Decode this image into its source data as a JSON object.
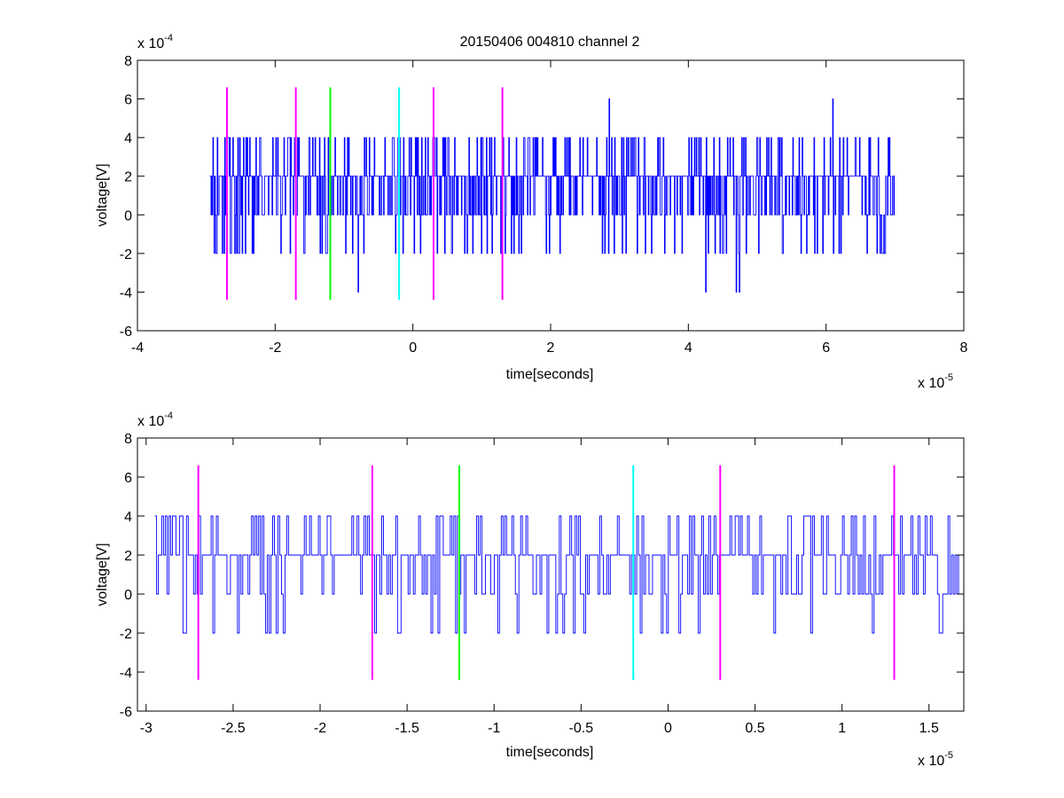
{
  "figure": {
    "title": "20150406 004810 channel 2",
    "background": "#ffffff"
  },
  "colors": {
    "signal": "#0000ff",
    "magenta": "#ff00ff",
    "green": "#00ff00",
    "cyan": "#00ffff",
    "axes": "#000000"
  },
  "chart_data": [
    {
      "type": "line",
      "title": "20150406 004810 channel 2",
      "xlabel": "time[seconds]",
      "ylabel": "voltage[V]",
      "x_multiplier": "x 10",
      "x_exponent": "-5",
      "y_multiplier": "x 10",
      "y_exponent": "-4",
      "xlim": [
        -4,
        8
      ],
      "ylim": [
        -6,
        8
      ],
      "xticks": [
        -4,
        -2,
        0,
        2,
        4,
        6,
        8
      ],
      "xtick_labels": [
        "-4",
        "-2",
        "0",
        "2",
        "4",
        "6",
        "8"
      ],
      "yticks": [
        -6,
        -4,
        -2,
        0,
        2,
        4,
        6,
        8
      ],
      "ytick_labels": [
        "-6",
        "-4",
        "-2",
        "0",
        "2",
        "4",
        "6",
        "8"
      ],
      "grid": false,
      "series": [
        {
          "color": "#0000ff",
          "x_range": [
            -2.95,
            7.0
          ],
          "levels": [
            -4,
            -2,
            0,
            2,
            4,
            6
          ],
          "baseline": 2,
          "peaks": [
            {
              "x": 2.85,
              "y": 6
            },
            {
              "x": 6.1,
              "y": 6
            },
            {
              "x": 4.7,
              "y": -4
            }
          ]
        }
      ],
      "vlines": [
        {
          "x": -2.7,
          "y": [
            -4.4,
            6.6
          ],
          "color": "#ff00ff"
        },
        {
          "x": -1.7,
          "y": [
            -4.4,
            6.6
          ],
          "color": "#ff00ff"
        },
        {
          "x": -1.2,
          "y": [
            -4.4,
            6.6
          ],
          "color": "#00ff00"
        },
        {
          "x": -0.2,
          "y": [
            -4.4,
            6.6
          ],
          "color": "#00ffff"
        },
        {
          "x": 0.3,
          "y": [
            -4.4,
            6.6
          ],
          "color": "#ff00ff"
        },
        {
          "x": 1.3,
          "y": [
            -4.4,
            6.6
          ],
          "color": "#ff00ff"
        }
      ]
    },
    {
      "type": "line",
      "title": "",
      "xlabel": "time[seconds]",
      "ylabel": "voltage[V]",
      "x_multiplier": "x 10",
      "x_exponent": "-5",
      "y_multiplier": "x 10",
      "y_exponent": "-4",
      "xlim": [
        -3.05,
        1.7
      ],
      "ylim": [
        -6,
        8
      ],
      "xticks": [
        -3,
        -2.5,
        -2,
        -1.5,
        -1,
        -0.5,
        0,
        0.5,
        1,
        1.5
      ],
      "xtick_labels": [
        "-3",
        "-2.5",
        "-2",
        "-1.5",
        "-1",
        "-0.5",
        "0",
        "0.5",
        "1",
        "1.5"
      ],
      "yticks": [
        -6,
        -4,
        -2,
        0,
        2,
        4,
        6,
        8
      ],
      "ytick_labels": [
        "-6",
        "-4",
        "-2",
        "0",
        "2",
        "4",
        "6",
        "8"
      ],
      "grid": false,
      "series": [
        {
          "color": "#0000ff",
          "x_range": [
            -2.95,
            1.7
          ],
          "levels": [
            -2,
            0,
            2,
            4
          ],
          "baseline": 2
        }
      ],
      "vlines": [
        {
          "x": -2.7,
          "y": [
            -4.4,
            6.6
          ],
          "color": "#ff00ff"
        },
        {
          "x": -1.7,
          "y": [
            -4.4,
            6.6
          ],
          "color": "#ff00ff"
        },
        {
          "x": -1.2,
          "y": [
            -4.4,
            6.6
          ],
          "color": "#00ff00"
        },
        {
          "x": -0.2,
          "y": [
            -4.4,
            6.6
          ],
          "color": "#00ffff"
        },
        {
          "x": 0.3,
          "y": [
            -4.4,
            6.6
          ],
          "color": "#ff00ff"
        },
        {
          "x": 1.3,
          "y": [
            -4.4,
            6.6
          ],
          "color": "#ff00ff"
        }
      ]
    }
  ]
}
